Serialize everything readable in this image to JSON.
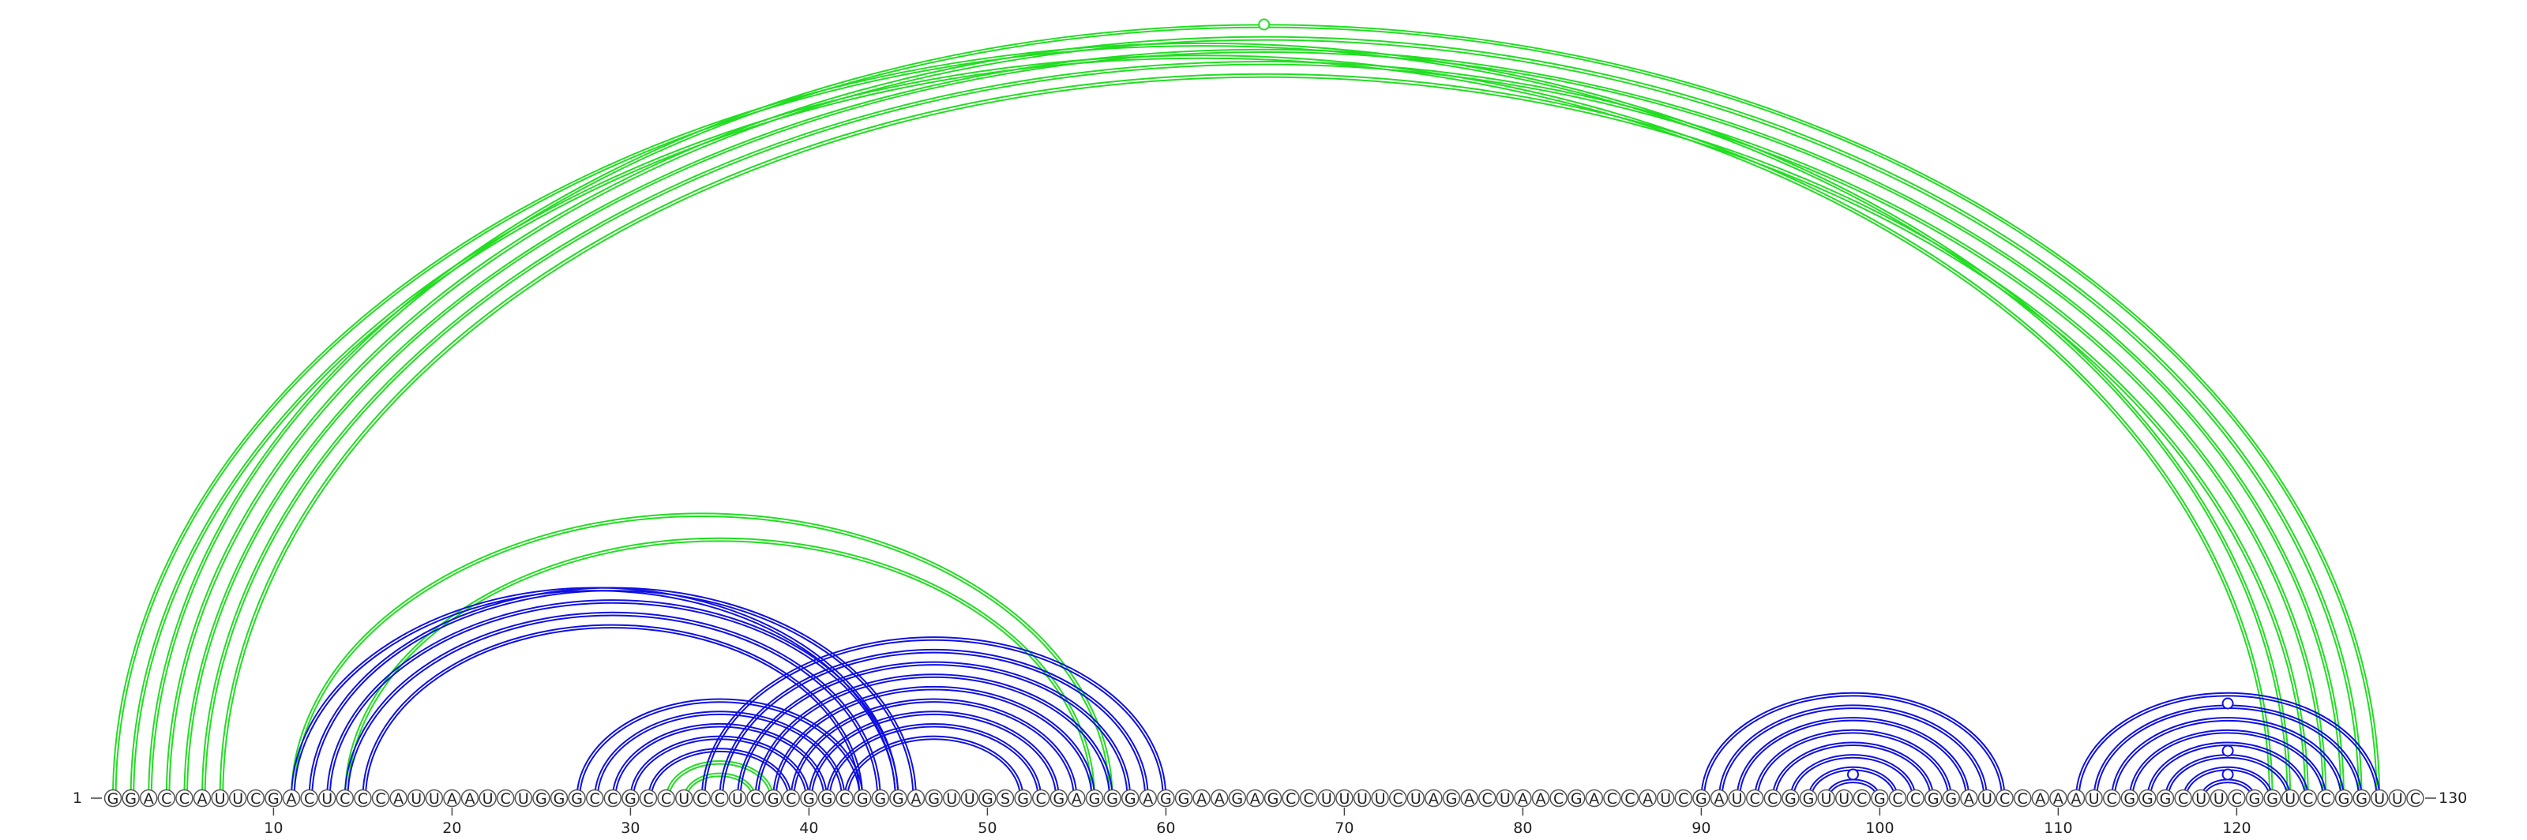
{
  "sequence": "GGACCAUUCGACUCCCAUUAAUCUGGGCCGCCUCCUCGCGGCGGGAGUUGSGCGAGGGAGGAAGAGCCUUUUCUAGACUAACGACCAUCGAUCCGGUUCGCCGGAUCCAAAUCGGGCUUCGGUCCGGUUC",
  "start_label": "1",
  "end_label": "130",
  "ticks": [
    10,
    20,
    30,
    40,
    50,
    60,
    70,
    80,
    90,
    100,
    110,
    120
  ],
  "colors": {
    "blue": "#1010e0",
    "green": "#22dd22"
  },
  "markers": [
    {
      "i": 65.5,
      "level": "top",
      "color": "green"
    },
    {
      "i": 119.5,
      "level": 1,
      "color": "blue"
    },
    {
      "i": 119.5,
      "level": 2,
      "color": "blue"
    },
    {
      "i": 119.5,
      "level": 4,
      "color": "blue"
    },
    {
      "i": 98.5,
      "level": 1,
      "color": "blue"
    }
  ],
  "arcs": [
    {
      "i": 1,
      "j": 123,
      "color": "green"
    },
    {
      "i": 2,
      "j": 122,
      "color": "green"
    },
    {
      "i": 3,
      "j": 128,
      "color": "green"
    },
    {
      "i": 4,
      "j": 127,
      "color": "green"
    },
    {
      "i": 5,
      "j": 126,
      "color": "green"
    },
    {
      "i": 6,
      "j": 125,
      "color": "green"
    },
    {
      "i": 7,
      "j": 124,
      "color": "green"
    },
    {
      "i": 11,
      "j": 57,
      "color": "green"
    },
    {
      "i": 14,
      "j": 56,
      "color": "green"
    },
    {
      "i": 11,
      "j": 45,
      "color": "blue"
    },
    {
      "i": 12,
      "j": 46,
      "color": "blue"
    },
    {
      "i": 13,
      "j": 45,
      "color": "blue"
    },
    {
      "i": 14,
      "j": 44,
      "color": "blue"
    },
    {
      "i": 15,
      "j": 43,
      "color": "blue"
    },
    {
      "i": 27,
      "j": 43,
      "color": "blue"
    },
    {
      "i": 28,
      "j": 42,
      "color": "blue"
    },
    {
      "i": 29,
      "j": 41,
      "color": "blue"
    },
    {
      "i": 30,
      "j": 40,
      "color": "blue"
    },
    {
      "i": 31,
      "j": 39,
      "color": "blue"
    },
    {
      "i": 32,
      "j": 38,
      "color": "green"
    },
    {
      "i": 33,
      "j": 37,
      "color": "green"
    },
    {
      "i": 34,
      "j": 60,
      "color": "blue"
    },
    {
      "i": 35,
      "j": 59,
      "color": "blue"
    },
    {
      "i": 36,
      "j": 58,
      "color": "blue"
    },
    {
      "i": 37,
      "j": 57,
      "color": "blue"
    },
    {
      "i": 38,
      "j": 56,
      "color": "blue"
    },
    {
      "i": 39,
      "j": 55,
      "color": "blue"
    },
    {
      "i": 40,
      "j": 54,
      "color": "blue"
    },
    {
      "i": 41,
      "j": 53,
      "color": "blue"
    },
    {
      "i": 42,
      "j": 52,
      "color": "blue"
    },
    {
      "i": 90,
      "j": 107,
      "color": "blue"
    },
    {
      "i": 91,
      "j": 106,
      "color": "blue"
    },
    {
      "i": 92,
      "j": 105,
      "color": "blue"
    },
    {
      "i": 93,
      "j": 104,
      "color": "blue"
    },
    {
      "i": 94,
      "j": 103,
      "color": "blue"
    },
    {
      "i": 95,
      "j": 102,
      "color": "blue"
    },
    {
      "i": 96,
      "j": 101,
      "color": "blue"
    },
    {
      "i": 97,
      "j": 100,
      "color": "blue"
    },
    {
      "i": 111,
      "j": 128,
      "color": "blue"
    },
    {
      "i": 112,
      "j": 127,
      "color": "blue"
    },
    {
      "i": 113,
      "j": 126,
      "color": "blue"
    },
    {
      "i": 114,
      "j": 125,
      "color": "blue"
    },
    {
      "i": 115,
      "j": 124,
      "color": "blue"
    },
    {
      "i": 116,
      "j": 123,
      "color": "blue"
    },
    {
      "i": 117,
      "j": 122,
      "color": "blue"
    },
    {
      "i": 118,
      "j": 121,
      "color": "blue"
    }
  ]
}
